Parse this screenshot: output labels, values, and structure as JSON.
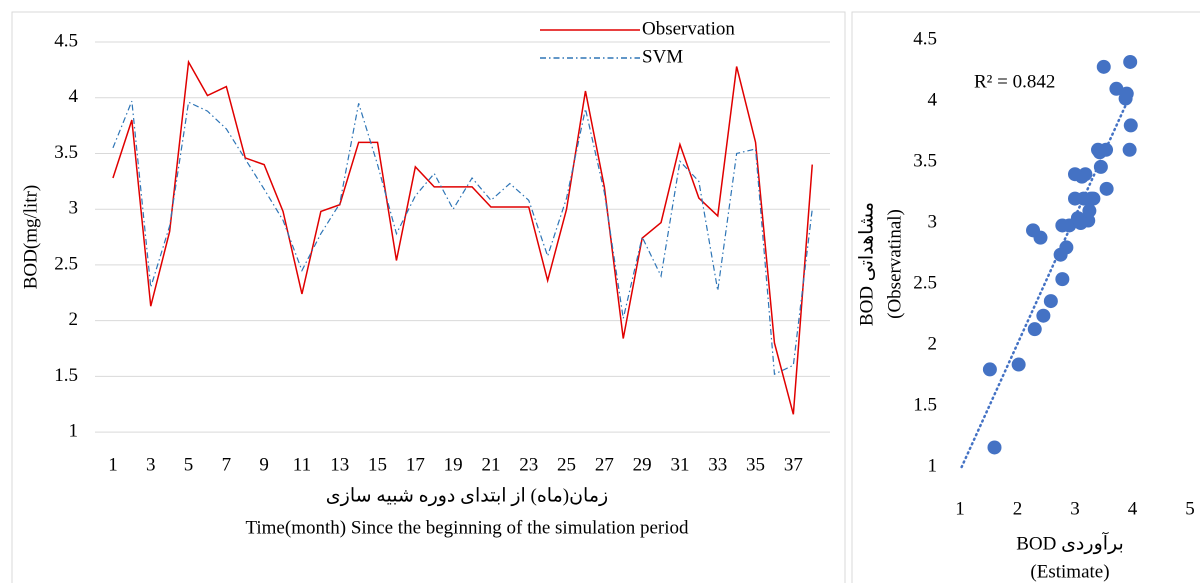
{
  "chart_data": [
    {
      "type": "line",
      "ylabel": "BOD(mg/litr)",
      "xlabel": [
        "زمان(ماه) از ابتدای دوره شبیه سازی",
        "Time(month) Since the beginning of the simulation period"
      ],
      "categories": [
        "1",
        null,
        "3",
        null,
        "5",
        null,
        "7",
        null,
        "9",
        null,
        "11",
        null,
        "13",
        null,
        "15",
        null,
        "17",
        null,
        "19",
        null,
        "21",
        null,
        "23",
        null,
        "25",
        null,
        "27",
        null,
        "29",
        null,
        "31",
        null,
        "33",
        null,
        "35",
        null,
        "37",
        null
      ],
      "series": [
        {
          "name": "Observation",
          "color": "#e00000",
          "dash": "none",
          "values": [
            3.28,
            3.8,
            2.13,
            2.8,
            4.32,
            4.02,
            4.1,
            3.46,
            3.4,
            2.98,
            2.24,
            2.98,
            3.04,
            3.6,
            3.6,
            2.54,
            3.38,
            3.2,
            3.2,
            3.2,
            3.02,
            3.02,
            3.02,
            2.36,
            3.0,
            4.06,
            3.2,
            1.84,
            2.74,
            2.88,
            3.58,
            3.1,
            2.94,
            4.28,
            3.6,
            1.8,
            1.16,
            3.4
          ]
        },
        {
          "name": "SVM",
          "color": "#2e75b6",
          "dash": "6 3 1.5 3",
          "values": [
            3.55,
            3.97,
            2.3,
            2.85,
            3.96,
            3.88,
            3.72,
            3.45,
            3.18,
            2.9,
            2.45,
            2.78,
            3.05,
            3.95,
            3.4,
            2.78,
            3.12,
            3.32,
            3.0,
            3.28,
            3.08,
            3.23,
            3.08,
            2.58,
            3.1,
            3.9,
            3.15,
            2.02,
            2.75,
            2.4,
            3.43,
            3.25,
            2.27,
            3.5,
            3.54,
            1.52,
            1.6,
            3.0
          ]
        }
      ],
      "ylim": [
        0.75,
        4.5
      ],
      "yticks": [
        1,
        1.5,
        2,
        2.5,
        3,
        3.5,
        4,
        4.5
      ],
      "grid": true,
      "legend": "top-right"
    },
    {
      "type": "scatter",
      "ylabel": [
        "BOD مشاهداتی",
        "(Observatinal)"
      ],
      "xlabel": [
        "BOD برآوردی",
        "(Estimate)"
      ],
      "annotation": "R² = 0.842",
      "color": "#4472c4",
      "trendline": true,
      "grid": false,
      "x": [
        3.55,
        3.97,
        2.3,
        2.85,
        3.96,
        3.88,
        3.72,
        3.45,
        3.18,
        2.9,
        2.45,
        2.78,
        3.05,
        3.95,
        3.4,
        2.78,
        3.12,
        3.32,
        3.0,
        3.28,
        3.08,
        3.23,
        3.08,
        2.58,
        3.1,
        3.9,
        3.15,
        2.02,
        2.75,
        2.4,
        3.43,
        3.25,
        2.27,
        3.5,
        3.54,
        1.52,
        1.6,
        3.0
      ],
      "y": [
        3.28,
        3.8,
        2.13,
        2.8,
        4.32,
        4.02,
        4.1,
        3.46,
        3.4,
        2.98,
        2.24,
        2.98,
        3.04,
        3.6,
        3.6,
        2.54,
        3.38,
        3.2,
        3.2,
        3.2,
        3.02,
        3.02,
        3.02,
        2.36,
        3.0,
        4.06,
        3.2,
        1.84,
        2.74,
        2.88,
        3.58,
        3.1,
        2.94,
        4.28,
        3.6,
        1.8,
        1.16,
        3.4
      ],
      "xlim": [
        1,
        5
      ],
      "xticks": [
        1,
        2,
        3,
        4,
        5
      ],
      "ylim": [
        1,
        4.5
      ],
      "yticks": [
        1,
        1.5,
        2,
        2.5,
        3,
        3.5,
        4,
        4.5
      ]
    }
  ]
}
